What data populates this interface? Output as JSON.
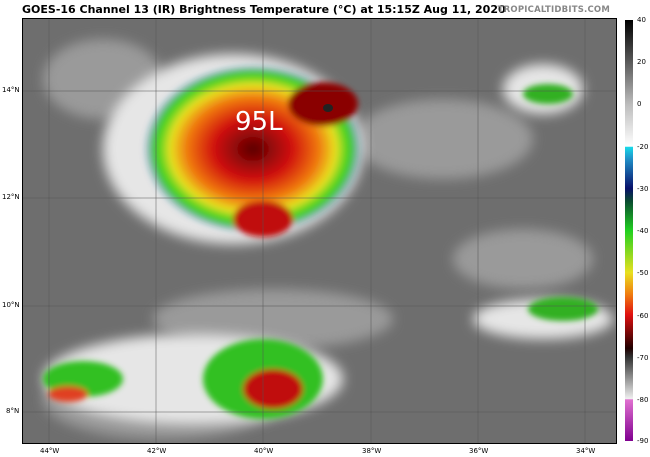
{
  "header": {
    "title": "GOES-16 Channel 13 (IR) Brightness Temperature (°C) at 15:15Z Aug 11, 2020",
    "credit": "TROPICALTIDBITS.COM"
  },
  "map": {
    "storm_label": "95L",
    "lat_labels": [
      "14°N",
      "12°N",
      "10°N",
      "8°N"
    ],
    "lon_labels": [
      "44°W",
      "42°W",
      "40°W",
      "38°W",
      "36°W",
      "34°W"
    ]
  },
  "colorbar": {
    "ticks": [
      "40",
      "20",
      "0",
      "-20",
      "-30",
      "-40",
      "-50",
      "-60",
      "-70",
      "-80",
      "-90"
    ],
    "range": [
      -90,
      40
    ]
  }
}
